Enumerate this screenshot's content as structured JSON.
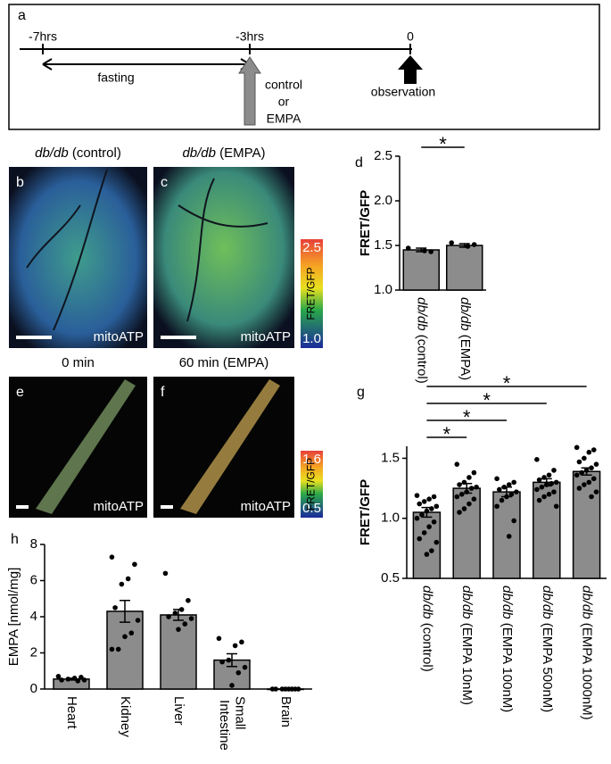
{
  "timeline": {
    "label": "a",
    "times": [
      "-7hrs",
      "-3hrs",
      "0"
    ],
    "fasting": "fasting",
    "treatment": [
      "control",
      "or",
      "EMPA"
    ],
    "observation": "observation"
  },
  "images": [
    {
      "label": "b",
      "title": "db/db (control)",
      "scale_label": "mitoATP"
    },
    {
      "label": "c",
      "title": "db/db (EMPA)",
      "scale_label": "mitoATP"
    },
    {
      "label": "e",
      "title": "0 min",
      "scale_label": "mitoATP"
    },
    {
      "label": "f",
      "title": "60 min (EMPA)",
      "scale_label": "mitoATP"
    }
  ],
  "colorbars": [
    {
      "max": "2.5",
      "min": "1.0",
      "label": "FRET/GFP"
    },
    {
      "max": "1.6",
      "min": "0.5",
      "label": "FRET/GFP"
    }
  ],
  "chart_data": [
    {
      "type": "bar",
      "label": "d",
      "ylabel": "FRET/GFP",
      "color": "#8c8c8c",
      "categories": [
        "db/db (control)",
        "db/db (EMPA)"
      ],
      "values": [
        1.45,
        1.5
      ],
      "errors": [
        0.02,
        0.02
      ],
      "points": [
        [
          1.47,
          1.43,
          1.44
        ],
        [
          1.53,
          1.51,
          1.49
        ]
      ],
      "ylim": [
        1.0,
        2.5
      ],
      "yticks": [
        {
          "value": 1,
          "label": "1.0"
        },
        {
          "value": 1.5,
          "label": "1.5"
        },
        {
          "value": 2,
          "label": "2.0"
        },
        {
          "value": 2.5,
          "label": "2.5"
        }
      ],
      "significance": [
        {
          "label": "*",
          "pair": [
            0,
            1
          ]
        }
      ]
    },
    {
      "type": "bar",
      "label": "g",
      "ylabel": "FRET/GFP",
      "color": "#8c8c8c",
      "categories": [
        "db/db (control)",
        "db/db (EMPA 10nM)",
        "db/db (EMPA 100nM)",
        "db/db (EMPA 500nM)",
        "db/db (EMPA 1000nM)"
      ],
      "values": [
        1.05,
        1.25,
        1.22,
        1.3,
        1.39
      ],
      "errors": [
        0.04,
        0.04,
        0.04,
        0.03,
        0.03
      ],
      "points": [
        [
          1.19,
          1.18,
          1.16,
          1.14,
          1.12,
          1.1,
          1.08,
          1.06,
          1.03,
          1.0,
          0.97,
          0.93,
          0.88,
          0.83,
          0.8,
          0.73,
          0.7
        ],
        [
          1.45,
          1.38,
          1.34,
          1.3,
          1.28,
          1.26,
          1.25,
          1.22,
          1.2,
          1.18,
          1.16,
          1.12,
          1.08,
          1.05
        ],
        [
          1.33,
          1.3,
          1.28,
          1.26,
          1.24,
          1.22,
          1.2,
          1.18,
          1.15,
          1.1,
          0.98,
          0.85
        ],
        [
          1.49,
          1.4,
          1.36,
          1.34,
          1.32,
          1.3,
          1.29,
          1.28,
          1.26,
          1.24,
          1.22,
          1.2,
          1.18,
          1.15,
          1.1
        ],
        [
          1.59,
          1.57,
          1.55,
          1.5,
          1.47,
          1.45,
          1.42,
          1.4,
          1.38,
          1.36,
          1.33,
          1.3,
          1.28,
          1.25,
          1.22,
          1.18
        ]
      ],
      "ylim": [
        0.5,
        1.6
      ],
      "yticks": [
        {
          "value": 0.5,
          "label": "0.5"
        },
        {
          "value": 1,
          "label": "1.0"
        },
        {
          "value": 1.5,
          "label": "1.5"
        }
      ],
      "significance": [
        {
          "label": "*",
          "pair": [
            0,
            1
          ]
        },
        {
          "label": "*",
          "pair": [
            0,
            2
          ]
        },
        {
          "label": "*",
          "pair": [
            0,
            3
          ]
        },
        {
          "label": "*",
          "pair": [
            0,
            4
          ]
        }
      ]
    },
    {
      "type": "bar",
      "label": "h",
      "ylabel": "EMPA [nmol/mg]",
      "color": "#8c8c8c",
      "categories": [
        "Heart",
        "Kidney",
        "Liver",
        "Small Intestine",
        "Brain"
      ],
      "values": [
        0.55,
        4.3,
        4.1,
        1.6,
        0
      ],
      "errors": [
        0.05,
        0.6,
        0.3,
        0.35,
        0
      ],
      "points": [
        [
          0.7,
          0.65,
          0.6,
          0.55,
          0.5,
          0.5,
          0.45
        ],
        [
          7.3,
          6.9,
          6.1,
          5.8,
          4.5,
          3.8,
          3.1,
          2.9,
          2.2,
          2.2
        ],
        [
          6.4,
          4.9,
          4.4,
          4.2,
          4.0,
          3.9,
          3.6,
          3.3
        ],
        [
          2.8,
          2.6,
          2.4,
          1.6,
          1.5,
          1.2,
          0.9,
          0.2
        ],
        [
          0,
          0,
          0,
          0,
          0,
          0,
          0,
          0
        ]
      ],
      "ylim": [
        0,
        8
      ],
      "yticks": [
        0,
        2,
        4,
        6,
        8
      ]
    }
  ]
}
